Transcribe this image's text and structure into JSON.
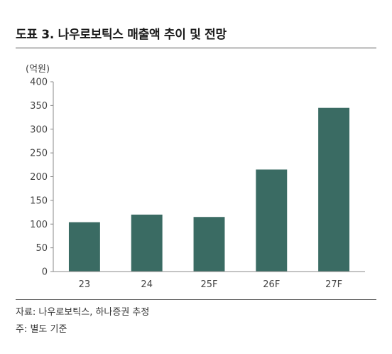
{
  "figure": {
    "title": "도표 3. 나우로보틱스 매출액 추이 및 전망",
    "unit_label": "(억원)",
    "source": "자료: 나우로보틱스, 하나증권 추정",
    "note": "주: 별도 기준"
  },
  "chart_data": {
    "type": "bar",
    "categories": [
      "23",
      "24",
      "25F",
      "26F",
      "27F"
    ],
    "values": [
      104,
      120,
      115,
      215,
      345
    ],
    "ylim": [
      0,
      400
    ],
    "yticks": [
      0,
      50,
      100,
      150,
      200,
      250,
      300,
      350,
      400
    ],
    "grid": false,
    "bar_color": "#3a6b63",
    "xlabel": "",
    "ylabel": ""
  }
}
